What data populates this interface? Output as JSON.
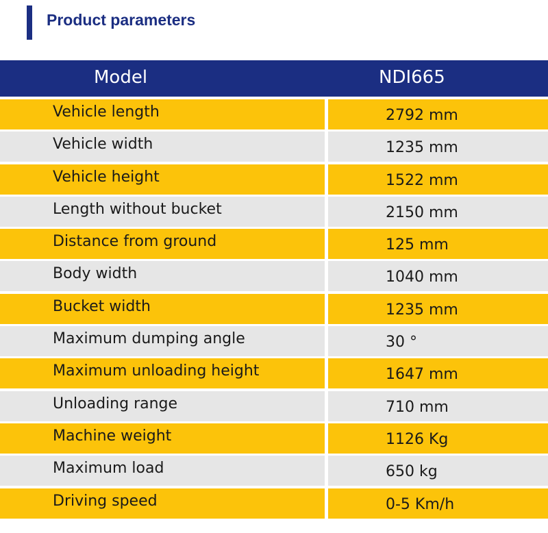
{
  "title": "Product parameters",
  "header": {
    "col1": "Model",
    "col2": "NDI665"
  },
  "rows": [
    {
      "label": "Vehicle length",
      "value": "2792 mm"
    },
    {
      "label": "Vehicle width",
      "value": "1235 mm"
    },
    {
      "label": "Vehicle height",
      "value": "1522 mm"
    },
    {
      "label": "Length without bucket",
      "value": "2150 mm"
    },
    {
      "label": "Distance from ground",
      "value": "125 mm"
    },
    {
      "label": "Body width",
      "value": "1040 mm"
    },
    {
      "label": "Bucket width",
      "value": "1235 mm"
    },
    {
      "label": "Maximum dumping angle",
      "value": "30 °"
    },
    {
      "label": "Maximum unloading height",
      "value": "1647 mm"
    },
    {
      "label": "Unloading range",
      "value": "710 mm"
    },
    {
      "label": "Machine weight",
      "value": "1126 Kg"
    },
    {
      "label": "Maximum load",
      "value": "650 kg"
    },
    {
      "label": "Driving speed",
      "value": "0-5 Km/h"
    }
  ],
  "colors": {
    "navy": "#1b2e82",
    "yellow": "#fcc30a",
    "gray": "#e6e6e6"
  }
}
